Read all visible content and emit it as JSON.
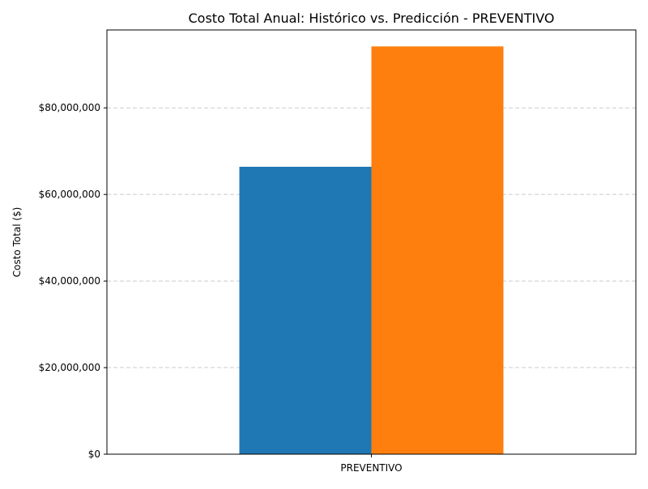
{
  "chart_data": {
    "type": "bar",
    "title": "Costo Total Anual: Histórico vs. Predicción - PREVENTIVO",
    "xlabel": "",
    "ylabel": "Costo Total ($)",
    "categories": [
      "PREVENTIVO"
    ],
    "series": [
      {
        "values": [
          66400000
        ],
        "color": "#1f77b4"
      },
      {
        "values": [
          94200000
        ],
        "color": "#ff7f0e"
      }
    ],
    "ylim": [
      0,
      98000000
    ],
    "yticks": [
      0,
      20000000,
      40000000,
      60000000,
      80000000
    ],
    "ytick_labels": [
      "$0",
      "$20,000,000",
      "$40,000,000",
      "$60,000,000",
      "$80,000,000"
    ],
    "grid": "y-dashed",
    "legend": "none"
  }
}
